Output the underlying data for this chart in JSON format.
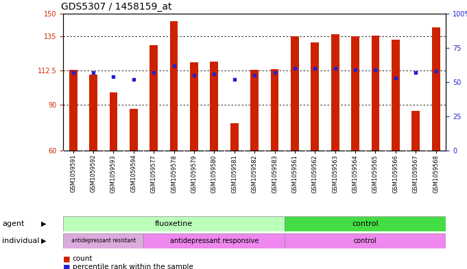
{
  "title": "GDS5307 / 1458159_at",
  "samples": [
    "GSM1059591",
    "GSM1059592",
    "GSM1059593",
    "GSM1059594",
    "GSM1059577",
    "GSM1059578",
    "GSM1059579",
    "GSM1059580",
    "GSM1059581",
    "GSM1059582",
    "GSM1059583",
    "GSM1059561",
    "GSM1059562",
    "GSM1059563",
    "GSM1059564",
    "GSM1059565",
    "GSM1059566",
    "GSM1059567",
    "GSM1059568"
  ],
  "bar_values": [
    113.0,
    110.0,
    98.0,
    87.5,
    129.0,
    145.0,
    118.0,
    118.5,
    78.0,
    113.0,
    113.5,
    135.0,
    131.0,
    136.5,
    135.0,
    135.5,
    133.0,
    86.0,
    141.0
  ],
  "blue_dot_values": [
    57,
    57,
    54,
    52,
    57,
    62,
    55,
    56,
    52,
    55,
    57,
    60,
    60,
    60,
    59,
    59,
    53,
    57,
    58
  ],
  "ylim_left": [
    60,
    150
  ],
  "ylim_right": [
    0,
    100
  ],
  "yticks_left": [
    60,
    90,
    112.5,
    135,
    150
  ],
  "yticks_right": [
    0,
    25,
    50,
    75,
    100
  ],
  "ytick_labels_left": [
    "60",
    "90",
    "112.5",
    "135",
    "150"
  ],
  "ytick_labels_right": [
    "0",
    "25",
    "50",
    "75",
    "100%"
  ],
  "bar_color": "#cc2200",
  "dot_color": "#2222cc",
  "background_color": "#e8e8e8",
  "fluoxetine_color": "#bbffbb",
  "control_agent_color": "#44dd44",
  "resistant_color": "#ddaadd",
  "responsive_color": "#ee88ee",
  "control_ind_color": "#ee88ee",
  "title_fontsize": 10,
  "tick_fontsize": 7,
  "label_fontsize": 8,
  "sample_fontsize": 6
}
